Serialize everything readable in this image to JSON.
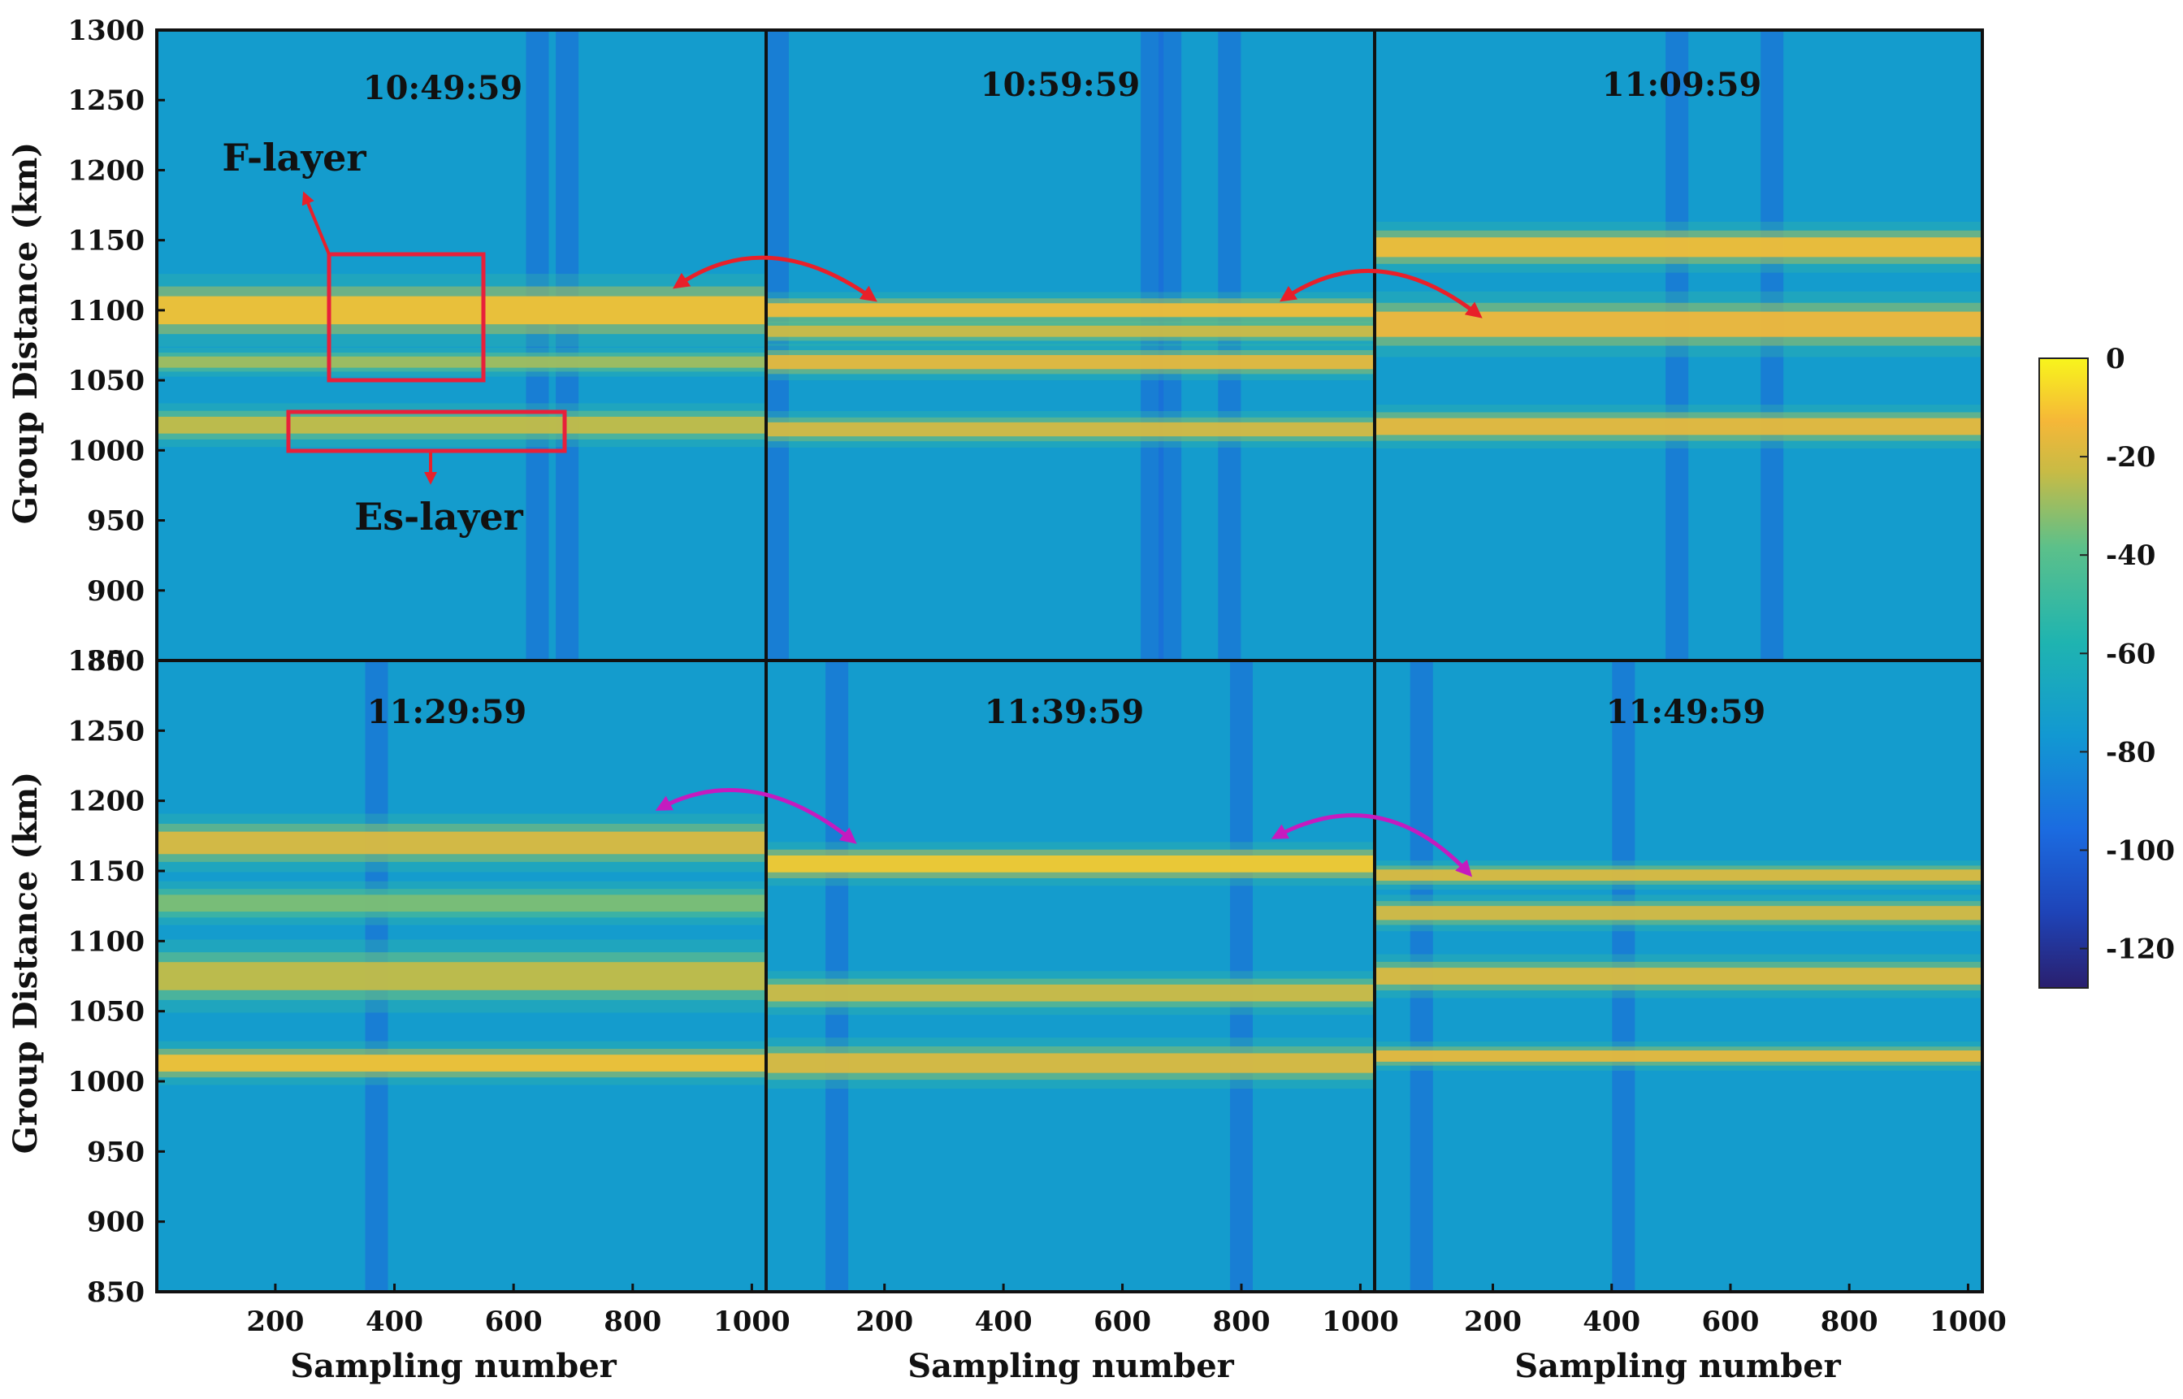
{
  "chart_data": {
    "type": "heatmap",
    "description_title": "",
    "xlabel": "Sampling number",
    "ylabel": "Group Distance (km)",
    "xlim": [
      1,
      1024
    ],
    "ylim": [
      850,
      1300
    ],
    "x_ticks": [
      200,
      400,
      600,
      800,
      1000
    ],
    "y_ticks": [
      850,
      900,
      950,
      1000,
      1050,
      1100,
      1150,
      1200,
      1250,
      1300
    ],
    "colorbar": {
      "ticks": [
        0,
        -20,
        -40,
        -60,
        -80,
        -100,
        -120
      ],
      "range": [
        -128,
        0
      ]
    },
    "panels": [
      {
        "time": "10:49:59",
        "bands": [
          {
            "center": 1100,
            "width": 10,
            "level": -18
          },
          {
            "center": 1063,
            "width": 4,
            "level": -40
          },
          {
            "center": 1018,
            "width": 6,
            "level": -35
          }
        ],
        "dark_columns": [
          640,
          690
        ]
      },
      {
        "time": "10:59:59",
        "bands": [
          {
            "center": 1100,
            "width": 5,
            "level": -20
          },
          {
            "center": 1085,
            "width": 4,
            "level": -32
          },
          {
            "center": 1063,
            "width": 5,
            "level": -25
          },
          {
            "center": 1015,
            "width": 5,
            "level": -30
          }
        ],
        "dark_columns": [
          20,
          650,
          680,
          780
        ]
      },
      {
        "time": "11:09:59",
        "bands": [
          {
            "center": 1145,
            "width": 7,
            "level": -20
          },
          {
            "center": 1090,
            "width": 9,
            "level": -22
          },
          {
            "center": 1017,
            "width": 6,
            "level": -25
          }
        ],
        "dark_columns": [
          510,
          670
        ]
      },
      {
        "time": "11:29:59",
        "bands": [
          {
            "center": 1170,
            "width": 8,
            "level": -28
          },
          {
            "center": 1127,
            "width": 6,
            "level": -45
          },
          {
            "center": 1075,
            "width": 10,
            "level": -35
          },
          {
            "center": 1013,
            "width": 6,
            "level": -18
          }
        ],
        "dark_columns": [
          370
        ]
      },
      {
        "time": "11:39:59",
        "bands": [
          {
            "center": 1155,
            "width": 6,
            "level": -15
          },
          {
            "center": 1063,
            "width": 6,
            "level": -32
          },
          {
            "center": 1013,
            "width": 7,
            "level": -28
          }
        ],
        "dark_columns": [
          120,
          800
        ]
      },
      {
        "time": "11:49:59",
        "bands": [
          {
            "center": 1147,
            "width": 4,
            "level": -28
          },
          {
            "center": 1120,
            "width": 5,
            "level": -30
          },
          {
            "center": 1075,
            "width": 6,
            "level": -28
          },
          {
            "center": 1018,
            "width": 4,
            "level": -25
          }
        ],
        "dark_columns": [
          80,
          420
        ]
      }
    ],
    "annotations": {
      "f_layer": "F-layer",
      "es_layer": "Es-layer"
    }
  },
  "colors": {
    "background_level": "#1f9bc6",
    "arrow_top": "#e8202a",
    "arrow_bottom": "#c51bbf",
    "box": "#e8203a"
  }
}
